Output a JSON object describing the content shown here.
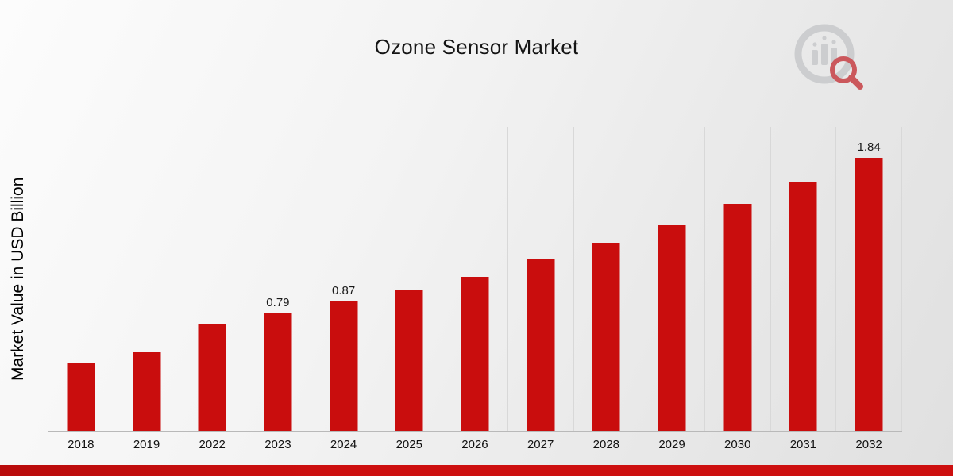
{
  "header": {
    "title": "Ozone Sensor Market"
  },
  "brand": {
    "logo_icon": "bar-chart-magnifier-logo",
    "logo_gray": "#c9cbcd",
    "logo_red": "#c8494e"
  },
  "accent_color": "#c90d0d",
  "chart_data": {
    "type": "bar",
    "title": "Ozone Sensor Market",
    "xlabel": "",
    "ylabel": "Market Value in USD Billion",
    "categories": [
      "2018",
      "2019",
      "2022",
      "2023",
      "2024",
      "2025",
      "2026",
      "2027",
      "2028",
      "2029",
      "2030",
      "2031",
      "2032"
    ],
    "values": [
      0.46,
      0.53,
      0.72,
      0.79,
      0.87,
      0.95,
      1.04,
      1.16,
      1.27,
      1.39,
      1.53,
      1.68,
      1.84
    ],
    "data_labels": {
      "2023": "0.79",
      "2024": "0.87",
      "2032": "1.84"
    },
    "ylim": [
      0,
      2.05
    ],
    "bar_color": "#c90d0d",
    "grid": "vertical",
    "legend": "none"
  }
}
